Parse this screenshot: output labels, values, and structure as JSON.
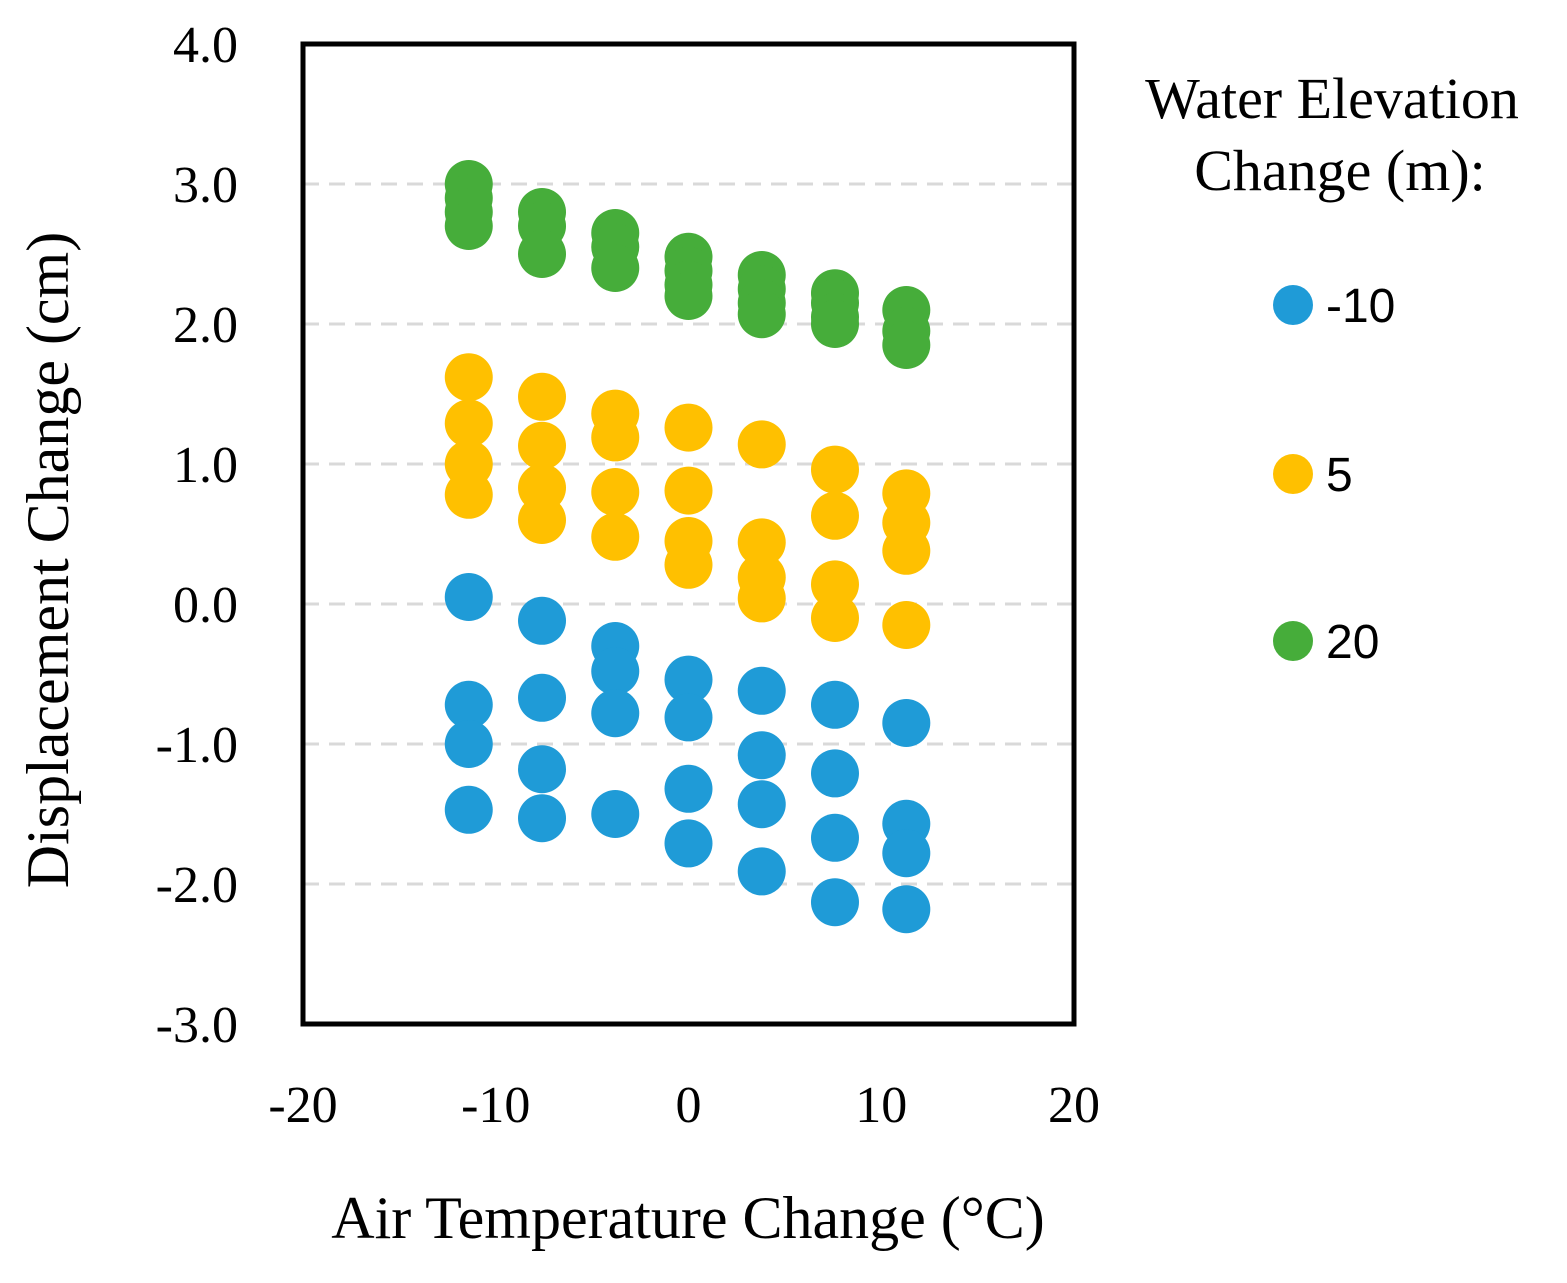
{
  "chart_data": {
    "type": "scatter",
    "title": "",
    "xlabel": "Air Temperature Change (°C)",
    "ylabel": "Displacement Change (cm)",
    "xlim": [
      -20,
      20
    ],
    "ylim": [
      -3.0,
      4.0
    ],
    "x_ticks": [
      -20,
      -10,
      0,
      10,
      20
    ],
    "x_tick_labels": [
      "-20",
      "-10",
      "0",
      "10",
      "20"
    ],
    "y_ticks": [
      4.0,
      3.0,
      2.0,
      1.0,
      0.0,
      -1.0,
      -2.0,
      -3.0
    ],
    "y_tick_labels": [
      "4.0",
      "3.0",
      "2.0",
      "1.0",
      "0.0",
      "-1.0",
      "-2.0",
      "-3.0"
    ],
    "gridlines_y": [
      3.0,
      2.0,
      1.0,
      0.0,
      -1.0,
      -2.0
    ],
    "grid": "horizontal dashed",
    "legend": {
      "title_line1": "Water Elevation",
      "title_line2": "Change (m):",
      "placement": "right"
    },
    "series": [
      {
        "name": "-10",
        "color": "#1f9bd7",
        "points": [
          {
            "x": -11.4,
            "y": 0.05
          },
          {
            "x": -11.4,
            "y": -0.72
          },
          {
            "x": -11.4,
            "y": -1.0
          },
          {
            "x": -11.4,
            "y": -1.47
          },
          {
            "x": -7.6,
            "y": -0.12
          },
          {
            "x": -7.6,
            "y": -0.67
          },
          {
            "x": -7.6,
            "y": -1.18
          },
          {
            "x": -7.6,
            "y": -1.53
          },
          {
            "x": -3.8,
            "y": -0.3
          },
          {
            "x": -3.8,
            "y": -0.48
          },
          {
            "x": -3.8,
            "y": -0.78
          },
          {
            "x": -3.8,
            "y": -1.5
          },
          {
            "x": 0.0,
            "y": -0.54
          },
          {
            "x": 0.0,
            "y": -0.81
          },
          {
            "x": 0.0,
            "y": -1.32
          },
          {
            "x": 0.0,
            "y": -1.71
          },
          {
            "x": 3.8,
            "y": -0.62
          },
          {
            "x": 3.8,
            "y": -1.08
          },
          {
            "x": 3.8,
            "y": -1.43
          },
          {
            "x": 3.8,
            "y": -1.91
          },
          {
            "x": 7.6,
            "y": -0.72
          },
          {
            "x": 7.6,
            "y": -1.21
          },
          {
            "x": 7.6,
            "y": -1.67
          },
          {
            "x": 7.6,
            "y": -2.13
          },
          {
            "x": 11.3,
            "y": -0.85
          },
          {
            "x": 11.3,
            "y": -1.57
          },
          {
            "x": 11.3,
            "y": -1.78
          },
          {
            "x": 11.3,
            "y": -2.18
          }
        ]
      },
      {
        "name": "5",
        "color": "#ffc000",
        "points": [
          {
            "x": -11.4,
            "y": 1.62
          },
          {
            "x": -11.4,
            "y": 1.29
          },
          {
            "x": -11.4,
            "y": 1.0
          },
          {
            "x": -11.4,
            "y": 0.78
          },
          {
            "x": -7.6,
            "y": 1.48
          },
          {
            "x": -7.6,
            "y": 1.13
          },
          {
            "x": -7.6,
            "y": 0.83
          },
          {
            "x": -7.6,
            "y": 0.6
          },
          {
            "x": -3.8,
            "y": 1.36
          },
          {
            "x": -3.8,
            "y": 1.19
          },
          {
            "x": -3.8,
            "y": 0.8
          },
          {
            "x": -3.8,
            "y": 0.48
          },
          {
            "x": 0.0,
            "y": 1.26
          },
          {
            "x": 0.0,
            "y": 0.81
          },
          {
            "x": 0.0,
            "y": 0.45
          },
          {
            "x": 0.0,
            "y": 0.28
          },
          {
            "x": 3.8,
            "y": 1.14
          },
          {
            "x": 3.8,
            "y": 0.44
          },
          {
            "x": 3.8,
            "y": 0.19
          },
          {
            "x": 3.8,
            "y": 0.04
          },
          {
            "x": 7.6,
            "y": 0.96
          },
          {
            "x": 7.6,
            "y": 0.63
          },
          {
            "x": 7.6,
            "y": 0.14
          },
          {
            "x": 7.6,
            "y": -0.1
          },
          {
            "x": 11.3,
            "y": 0.79
          },
          {
            "x": 11.3,
            "y": 0.58
          },
          {
            "x": 11.3,
            "y": 0.38
          },
          {
            "x": 11.3,
            "y": -0.15
          }
        ]
      },
      {
        "name": "20",
        "color": "#46ad3a",
        "points": [
          {
            "x": -11.4,
            "y": 3.0
          },
          {
            "x": -11.4,
            "y": 2.9
          },
          {
            "x": -11.4,
            "y": 2.8
          },
          {
            "x": -11.4,
            "y": 2.7
          },
          {
            "x": -7.6,
            "y": 2.8
          },
          {
            "x": -7.6,
            "y": 2.7
          },
          {
            "x": -7.6,
            "y": 2.5
          },
          {
            "x": -3.8,
            "y": 2.65
          },
          {
            "x": -3.8,
            "y": 2.55
          },
          {
            "x": -3.8,
            "y": 2.4
          },
          {
            "x": 0.0,
            "y": 2.48
          },
          {
            "x": 0.0,
            "y": 2.38
          },
          {
            "x": 0.0,
            "y": 2.28
          },
          {
            "x": 0.0,
            "y": 2.2
          },
          {
            "x": 3.8,
            "y": 2.35
          },
          {
            "x": 3.8,
            "y": 2.25
          },
          {
            "x": 3.8,
            "y": 2.15
          },
          {
            "x": 3.8,
            "y": 2.07
          },
          {
            "x": 7.6,
            "y": 2.22
          },
          {
            "x": 7.6,
            "y": 2.15
          },
          {
            "x": 7.6,
            "y": 2.05
          },
          {
            "x": 7.6,
            "y": 2.0
          },
          {
            "x": 11.3,
            "y": 2.1
          },
          {
            "x": 11.3,
            "y": 1.95
          },
          {
            "x": 11.3,
            "y": 1.85
          }
        ]
      }
    ]
  }
}
